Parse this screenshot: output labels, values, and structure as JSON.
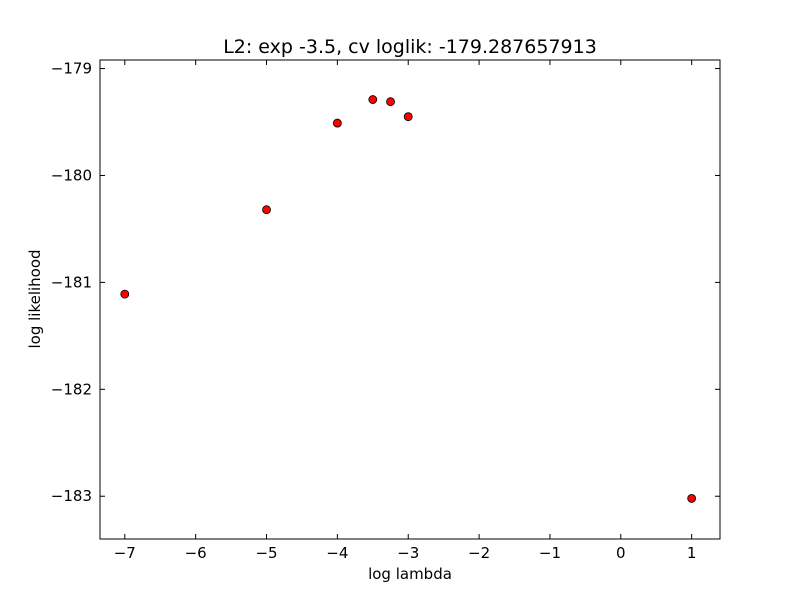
{
  "chart_data": {
    "type": "scatter",
    "title": "L2: exp -3.5, cv loglik: -179.287657913",
    "xlabel": "log lambda",
    "ylabel": "log likelihood",
    "xlim": [
      -7.35,
      1.4
    ],
    "ylim": [
      -183.4,
      -178.92
    ],
    "x_ticks": [
      -7,
      -6,
      -5,
      -4,
      -3,
      -2,
      -1,
      0,
      1
    ],
    "x_tick_labels": [
      "−7",
      "−6",
      "−5",
      "−4",
      "−3",
      "−2",
      "−1",
      "0",
      "1"
    ],
    "y_ticks": [
      -179,
      -180,
      -181,
      -182,
      -183
    ],
    "y_tick_labels": [
      "−179",
      "−180",
      "−181",
      "−182",
      "−183"
    ],
    "grid": false,
    "marker_color": "#ff0000",
    "marker_edge_color": "#000000",
    "series": [
      {
        "points": [
          {
            "x": -7,
            "y": -181.11
          },
          {
            "x": -5,
            "y": -180.32
          },
          {
            "x": -4,
            "y": -179.51
          },
          {
            "x": -3.5,
            "y": -179.29
          },
          {
            "x": -3.25,
            "y": -179.31
          },
          {
            "x": -3,
            "y": -179.45
          },
          {
            "x": 1,
            "y": -183.02
          }
        ]
      }
    ]
  }
}
